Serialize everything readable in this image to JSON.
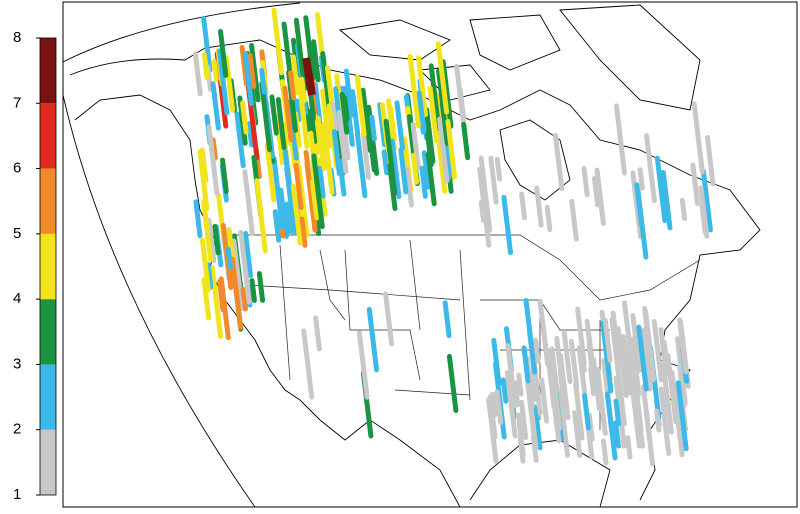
{
  "colorbar": {
    "labels": [
      1,
      2,
      3,
      4,
      5,
      6,
      7,
      8
    ],
    "colors": [
      "#c8c8c8",
      "#3bb9e9",
      "#1b9442",
      "#f1e41c",
      "#f08a2a",
      "#e02a1e",
      "#7b1212"
    ]
  }
}
